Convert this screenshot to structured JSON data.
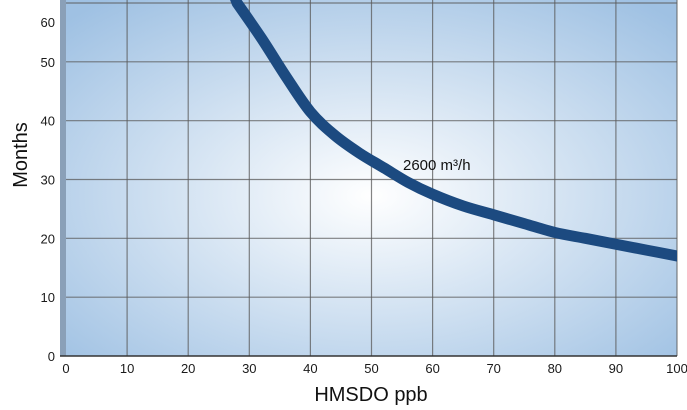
{
  "chart_data": {
    "type": "line",
    "xlabel": "HMSDO ppb",
    "ylabel": "Months",
    "xlim": [
      0,
      100
    ],
    "ylim": [
      0,
      60
    ],
    "x_ticks": [
      0,
      10,
      20,
      30,
      40,
      50,
      60,
      70,
      80,
      90,
      100
    ],
    "y_ticks": [
      0,
      10,
      20,
      30,
      40,
      50,
      60
    ],
    "grid": true,
    "series": [
      {
        "name": "2600 m³/h",
        "x": [
          28,
          32,
          36,
          40,
          44,
          48,
          52,
          56,
          60,
          65,
          70,
          75,
          80,
          85,
          90,
          95,
          100
        ],
        "y": [
          60,
          54,
          47.5,
          41.5,
          37.5,
          34.5,
          32,
          29.5,
          27.5,
          25.5,
          24,
          22.5,
          21,
          20,
          19,
          18,
          17
        ]
      }
    ],
    "annotations": [
      {
        "text": "2600 m³/h",
        "x": 55,
        "y": 33
      }
    ],
    "colors": {
      "curve": "#1c4a80",
      "grid": "#5a5a5a",
      "background_center": "#ffffff",
      "background_edge": "#9fc1e3"
    }
  }
}
